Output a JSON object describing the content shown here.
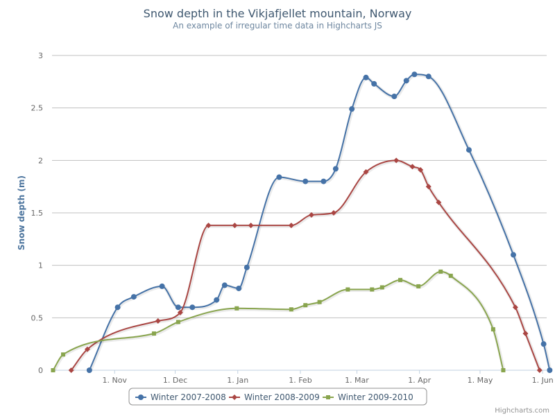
{
  "chart_data": {
    "type": "line",
    "title": "Snow depth in the Vikjafjellet mountain, Norway",
    "subtitle": "An example of irregular time data in Highcharts JS",
    "ylabel": "Snow depth (m)",
    "xlabel": "",
    "ylim": [
      0,
      3
    ],
    "yticks": [
      {
        "value": 0,
        "label": "0"
      },
      {
        "value": 0.5,
        "label": "0.5"
      },
      {
        "value": 1,
        "label": "1"
      },
      {
        "value": 1.5,
        "label": "1.5"
      },
      {
        "value": 2,
        "label": "2"
      },
      {
        "value": 2.5,
        "label": "2.5"
      },
      {
        "value": 3,
        "label": "3"
      }
    ],
    "xlim_day": [
      0,
      245
    ],
    "xticks": [
      {
        "day": 31,
        "label": "1. Nov"
      },
      {
        "day": 61,
        "label": "1. Dec"
      },
      {
        "day": 92,
        "label": "1. Jan"
      },
      {
        "day": 123,
        "label": "1. Feb"
      },
      {
        "day": 151,
        "label": "1. Mar"
      },
      {
        "day": 182,
        "label": "1. Apr"
      },
      {
        "day": 212,
        "label": "1. May"
      },
      {
        "day": 243,
        "label": "1. Jun"
      }
    ],
    "grid": true,
    "legend_position": "bottom-center",
    "series": [
      {
        "name": "Winter 2007-2008",
        "color": "#4572A7",
        "marker": "circle",
        "points": [
          {
            "day": 18.5,
            "y": 0
          },
          {
            "day": 32.5,
            "y": 0.6
          },
          {
            "day": 40.5,
            "y": 0.7
          },
          {
            "day": 54.5,
            "y": 0.8
          },
          {
            "day": 62.5,
            "y": 0.6
          },
          {
            "day": 69.5,
            "y": 0.6
          },
          {
            "day": 81.5,
            "y": 0.67
          },
          {
            "day": 85.5,
            "y": 0.81
          },
          {
            "day": 92.5,
            "y": 0.78
          },
          {
            "day": 96.5,
            "y": 0.98
          },
          {
            "day": 112.5,
            "y": 1.84
          },
          {
            "day": 125.5,
            "y": 1.8
          },
          {
            "day": 134.5,
            "y": 1.8
          },
          {
            "day": 140.5,
            "y": 1.92
          },
          {
            "day": 148.5,
            "y": 2.49
          },
          {
            "day": 155.5,
            "y": 2.79
          },
          {
            "day": 159.5,
            "y": 2.73
          },
          {
            "day": 169.5,
            "y": 2.61
          },
          {
            "day": 175.5,
            "y": 2.76
          },
          {
            "day": 179.5,
            "y": 2.82
          },
          {
            "day": 186.5,
            "y": 2.8
          },
          {
            "day": 206.5,
            "y": 2.1
          },
          {
            "day": 228.5,
            "y": 1.1
          },
          {
            "day": 243.5,
            "y": 0.25
          },
          {
            "day": 246.5,
            "y": 0
          }
        ]
      },
      {
        "name": "Winter 2008-2009",
        "color": "#AA4643",
        "marker": "diamond",
        "points": [
          {
            "day": 9.5,
            "y": 0
          },
          {
            "day": 17.5,
            "y": 0.2
          },
          {
            "day": 52.5,
            "y": 0.47
          },
          {
            "day": 63.5,
            "y": 0.55
          },
          {
            "day": 77.5,
            "y": 1.38
          },
          {
            "day": 90.5,
            "y": 1.38
          },
          {
            "day": 98.5,
            "y": 1.38
          },
          {
            "day": 118.5,
            "y": 1.38
          },
          {
            "day": 128.5,
            "y": 1.48
          },
          {
            "day": 139.5,
            "y": 1.5
          },
          {
            "day": 155.5,
            "y": 1.89
          },
          {
            "day": 170.5,
            "y": 2.0
          },
          {
            "day": 178.5,
            "y": 1.94
          },
          {
            "day": 182.5,
            "y": 1.91
          },
          {
            "day": 186.5,
            "y": 1.75
          },
          {
            "day": 191.5,
            "y": 1.6
          },
          {
            "day": 229.5,
            "y": 0.6
          },
          {
            "day": 234.5,
            "y": 0.35
          },
          {
            "day": 241.5,
            "y": 0
          }
        ]
      },
      {
        "name": "Winter 2009-2010",
        "color": "#89A54E",
        "marker": "square",
        "points": [
          {
            "day": 0.5,
            "y": 0
          },
          {
            "day": 5.5,
            "y": 0.15
          },
          {
            "day": 50.5,
            "y": 0.35
          },
          {
            "day": 62.5,
            "y": 0.46
          },
          {
            "day": 91.5,
            "y": 0.59
          },
          {
            "day": 118.5,
            "y": 0.58
          },
          {
            "day": 125.5,
            "y": 0.62
          },
          {
            "day": 132.5,
            "y": 0.65
          },
          {
            "day": 146.5,
            "y": 0.77
          },
          {
            "day": 158.5,
            "y": 0.77
          },
          {
            "day": 163.5,
            "y": 0.79
          },
          {
            "day": 172.5,
            "y": 0.86
          },
          {
            "day": 181.5,
            "y": 0.8
          },
          {
            "day": 192.5,
            "y": 0.94
          },
          {
            "day": 197.5,
            "y": 0.9
          },
          {
            "day": 218.5,
            "y": 0.39
          },
          {
            "day": 223.5,
            "y": 0
          }
        ]
      }
    ]
  },
  "credits": "Highcharts.com"
}
